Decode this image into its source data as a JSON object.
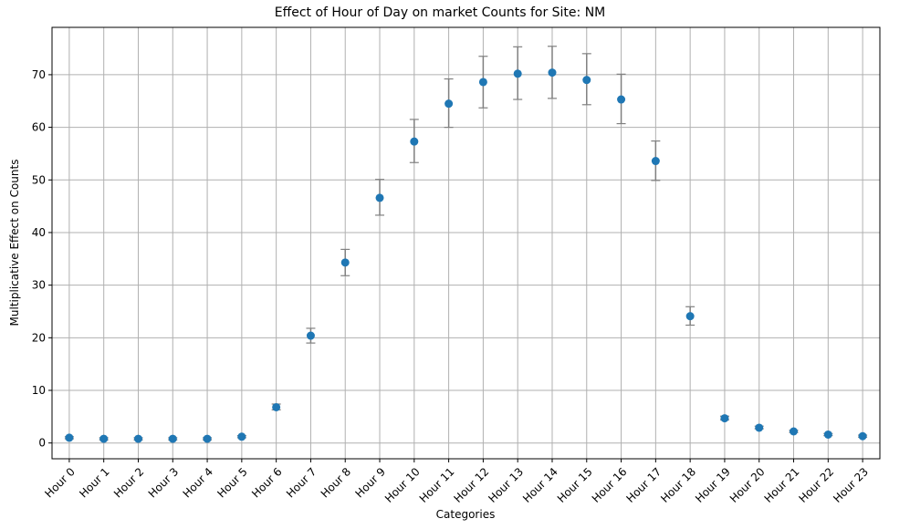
{
  "chart_data": {
    "type": "scatter",
    "title": "Effect of Hour of Day on market Counts for Site: NM",
    "xlabel": "Categories",
    "ylabel": "Multiplicative Effect on Counts",
    "categories": [
      "Hour 0",
      "Hour 1",
      "Hour 2",
      "Hour 3",
      "Hour 4",
      "Hour 5",
      "Hour 6",
      "Hour 7",
      "Hour 8",
      "Hour 9",
      "Hour 10",
      "Hour 11",
      "Hour 12",
      "Hour 13",
      "Hour 14",
      "Hour 15",
      "Hour 16",
      "Hour 17",
      "Hour 18",
      "Hour 19",
      "Hour 20",
      "Hour 21",
      "Hour 22",
      "Hour 23"
    ],
    "values": [
      1.0,
      0.8,
      0.8,
      0.8,
      0.8,
      1.2,
      6.8,
      20.4,
      34.3,
      46.6,
      57.3,
      64.5,
      68.6,
      70.2,
      70.4,
      69.0,
      65.3,
      53.6,
      24.1,
      4.7,
      2.9,
      2.2,
      1.6,
      1.3
    ],
    "error_low": [
      0.8,
      0.6,
      0.6,
      0.6,
      0.6,
      1.0,
      6.3,
      19.0,
      31.8,
      43.3,
      53.3,
      60.0,
      63.7,
      65.3,
      65.5,
      64.3,
      60.7,
      49.9,
      22.4,
      4.4,
      2.7,
      2.0,
      1.4,
      1.1
    ],
    "error_high": [
      1.2,
      1.0,
      1.0,
      1.0,
      1.0,
      1.4,
      7.4,
      21.8,
      36.8,
      50.1,
      61.5,
      69.2,
      73.5,
      75.3,
      75.4,
      74.0,
      70.1,
      57.4,
      25.9,
      5.1,
      3.2,
      2.4,
      1.8,
      1.5
    ],
    "yticks": [
      "0",
      "10",
      "20",
      "30",
      "40",
      "50",
      "60",
      "70"
    ],
    "ylim": [
      -3,
      79
    ],
    "grid": true,
    "colors": {
      "marker": "#1f77b4",
      "errorbar": "#808080",
      "grid": "#b0b0b0"
    }
  }
}
